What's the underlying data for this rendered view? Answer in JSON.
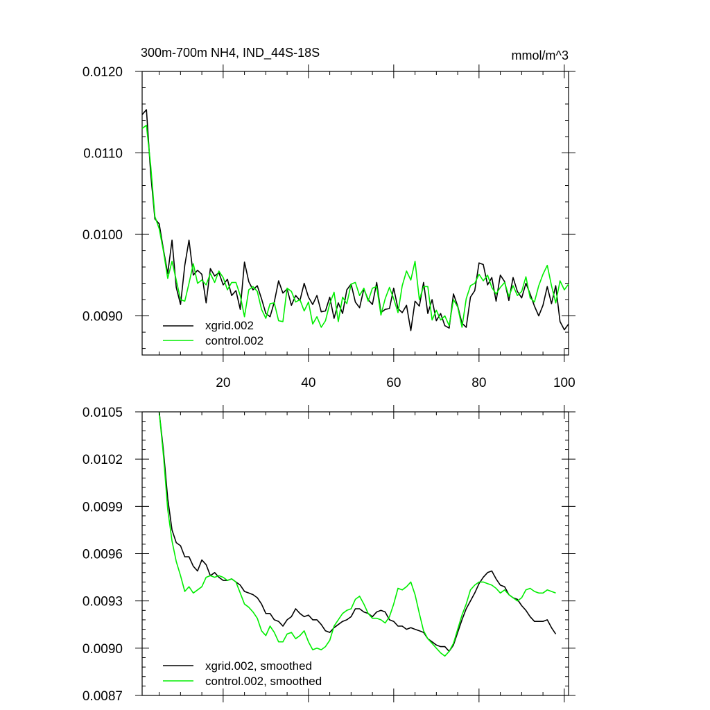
{
  "chart_data": [
    {
      "type": "line",
      "title": "300m-700m NH4, IND_44S-18S",
      "units": "mmol/m^3",
      "xlim": [
        1,
        101
      ],
      "ylim": [
        0.00852,
        0.012
      ],
      "xticks": [
        20,
        40,
        60,
        80,
        100
      ],
      "xtick_labels": [
        "20",
        "40",
        "60",
        "80",
        "100"
      ],
      "yticks": [
        0.009,
        0.01,
        0.011,
        0.012
      ],
      "ytick_labels": [
        "0.0090",
        "0.0100",
        "0.0110",
        "0.0120"
      ],
      "show_x_labels": true,
      "legend_position": "bottom-left",
      "series": [
        {
          "name": "xgrid.002",
          "color": "#000000",
          "x": [
            1,
            2,
            3,
            4,
            5,
            6,
            7,
            8,
            9,
            10,
            11,
            12,
            13,
            14,
            15,
            16,
            17,
            18,
            19,
            20,
            21,
            22,
            23,
            24,
            25,
            26,
            27,
            28,
            29,
            30,
            31,
            32,
            33,
            34,
            35,
            36,
            37,
            38,
            39,
            40,
            41,
            42,
            43,
            44,
            45,
            46,
            47,
            48,
            49,
            50,
            51,
            52,
            53,
            54,
            55,
            56,
            57,
            58,
            59,
            60,
            61,
            62,
            63,
            64,
            65,
            66,
            67,
            68,
            69,
            70,
            71,
            72,
            73,
            74,
            75,
            76,
            77,
            78,
            79,
            80,
            81,
            82,
            83,
            84,
            85,
            86,
            87,
            88,
            89,
            90,
            91,
            92,
            93,
            94,
            95,
            96,
            97,
            98,
            99,
            100,
            101
          ],
          "values": [
            0.01147,
            0.01153,
            0.01075,
            0.01019,
            0.01013,
            0.00981,
            0.00952,
            0.00993,
            0.00935,
            0.00914,
            0.00962,
            0.00993,
            0.0095,
            0.00956,
            0.00951,
            0.00916,
            0.00958,
            0.00949,
            0.00953,
            0.00938,
            0.00945,
            0.00925,
            0.00931,
            0.00908,
            0.00966,
            0.00942,
            0.00932,
            0.00937,
            0.00921,
            0.00903,
            0.00899,
            0.00917,
            0.00943,
            0.00928,
            0.00933,
            0.00913,
            0.00925,
            0.00919,
            0.0094,
            0.00923,
            0.00914,
            0.00925,
            0.00905,
            0.00906,
            0.00923,
            0.00897,
            0.00916,
            0.00903,
            0.00932,
            0.00939,
            0.00917,
            0.0091,
            0.00933,
            0.0092,
            0.00914,
            0.00941,
            0.00904,
            0.00908,
            0.00909,
            0.00934,
            0.00909,
            0.00904,
            0.00913,
            0.00882,
            0.00918,
            0.00912,
            0.00941,
            0.00903,
            0.0092,
            0.00894,
            0.00903,
            0.00888,
            0.00885,
            0.00927,
            0.00912,
            0.00891,
            0.00886,
            0.00923,
            0.00931,
            0.00965,
            0.00963,
            0.00938,
            0.00947,
            0.00918,
            0.0095,
            0.00942,
            0.00919,
            0.00947,
            0.0093,
            0.00922,
            0.0094,
            0.00927,
            0.00912,
            0.009,
            0.00913,
            0.00936,
            0.00915,
            0.00937,
            0.00893,
            0.00883,
            0.0089
          ]
        },
        {
          "name": "control.002",
          "color": "#00ee00",
          "x": [
            1,
            2,
            3,
            4,
            5,
            6,
            7,
            8,
            9,
            10,
            11,
            12,
            13,
            14,
            15,
            16,
            17,
            18,
            19,
            20,
            21,
            22,
            23,
            24,
            25,
            26,
            27,
            28,
            29,
            30,
            31,
            32,
            33,
            34,
            35,
            36,
            37,
            38,
            39,
            40,
            41,
            42,
            43,
            44,
            45,
            46,
            47,
            48,
            49,
            50,
            51,
            52,
            53,
            54,
            55,
            56,
            57,
            58,
            59,
            60,
            61,
            62,
            63,
            64,
            65,
            66,
            67,
            68,
            69,
            70,
            71,
            72,
            73,
            74,
            75,
            76,
            77,
            78,
            79,
            80,
            81,
            82,
            83,
            84,
            85,
            86,
            87,
            88,
            89,
            90,
            91,
            92,
            93,
            94,
            95,
            96,
            97,
            98,
            99,
            100,
            101
          ],
          "values": [
            0.0113,
            0.01134,
            0.01085,
            0.01022,
            0.01007,
            0.00979,
            0.00946,
            0.00967,
            0.00944,
            0.0092,
            0.00918,
            0.0094,
            0.00964,
            0.0094,
            0.00944,
            0.00938,
            0.00952,
            0.00941,
            0.00955,
            0.00947,
            0.00932,
            0.00941,
            0.00941,
            0.00925,
            0.00899,
            0.00932,
            0.00936,
            0.0093,
            0.00908,
            0.00897,
            0.00915,
            0.00916,
            0.00894,
            0.00893,
            0.00934,
            0.0093,
            0.00917,
            0.0092,
            0.00906,
            0.00917,
            0.0089,
            0.00899,
            0.00886,
            0.00894,
            0.00915,
            0.00929,
            0.00893,
            0.00923,
            0.00915,
            0.00939,
            0.00941,
            0.00925,
            0.00934,
            0.00918,
            0.00934,
            0.00936,
            0.00901,
            0.00921,
            0.00935,
            0.00921,
            0.00904,
            0.00937,
            0.00955,
            0.00944,
            0.00967,
            0.0092,
            0.00936,
            0.00936,
            0.00895,
            0.00907,
            0.00895,
            0.009,
            0.00888,
            0.0092,
            0.00911,
            0.00886,
            0.00921,
            0.00937,
            0.0094,
            0.00951,
            0.00943,
            0.0095,
            0.00935,
            0.00927,
            0.00935,
            0.00941,
            0.00924,
            0.00937,
            0.00925,
            0.0093,
            0.00948,
            0.00922,
            0.00917,
            0.00937,
            0.00951,
            0.00962,
            0.00937,
            0.00916,
            0.00943,
            0.00932,
            0.00939
          ]
        }
      ]
    },
    {
      "type": "line",
      "title": "",
      "xlim": [
        1,
        101
      ],
      "ylim": [
        0.0087,
        0.0105
      ],
      "xticks": [
        20,
        40,
        60,
        80,
        100
      ],
      "xtick_labels": [],
      "yticks": [
        0.0087,
        0.009,
        0.0093,
        0.0096,
        0.0099,
        0.0102,
        0.0105
      ],
      "ytick_labels": [
        "0.0087",
        "0.0090",
        "0.0093",
        "0.0096",
        "0.0099",
        "0.0102",
        "0.0105"
      ],
      "show_x_labels": false,
      "legend_position": "bottom-left",
      "series": [
        {
          "name": "xgrid.002, smoothed",
          "color": "#000000",
          "x": [
            5,
            6,
            7,
            8,
            9,
            10,
            11,
            12,
            13,
            14,
            15,
            16,
            17,
            18,
            19,
            20,
            21,
            22,
            23,
            24,
            25,
            26,
            27,
            28,
            29,
            30,
            31,
            32,
            33,
            34,
            35,
            36,
            37,
            38,
            39,
            40,
            41,
            42,
            43,
            44,
            45,
            46,
            47,
            48,
            49,
            50,
            51,
            52,
            53,
            54,
            55,
            56,
            57,
            58,
            59,
            60,
            61,
            62,
            63,
            64,
            65,
            66,
            67,
            68,
            69,
            70,
            71,
            72,
            73,
            74,
            75,
            76,
            77,
            78,
            79,
            80,
            81,
            82,
            83,
            84,
            85,
            86,
            87,
            88,
            89,
            90,
            91,
            92,
            93,
            94,
            95,
            96,
            97,
            98
          ],
          "values": [
            0.0105,
            0.01025,
            0.00995,
            0.00975,
            0.00967,
            0.00965,
            0.00958,
            0.00958,
            0.00952,
            0.00949,
            0.00956,
            0.00953,
            0.00946,
            0.00948,
            0.00945,
            0.00943,
            0.00943,
            0.00944,
            0.00942,
            0.0094,
            0.00936,
            0.00935,
            0.00934,
            0.00932,
            0.00928,
            0.00922,
            0.00922,
            0.00918,
            0.00917,
            0.00914,
            0.00918,
            0.0092,
            0.00925,
            0.00922,
            0.0092,
            0.00921,
            0.00918,
            0.00918,
            0.00915,
            0.00911,
            0.0091,
            0.00913,
            0.00915,
            0.00917,
            0.00918,
            0.0092,
            0.00925,
            0.00925,
            0.00923,
            0.00922,
            0.0092,
            0.00923,
            0.00924,
            0.00923,
            0.00918,
            0.00917,
            0.00914,
            0.00914,
            0.00912,
            0.00913,
            0.00912,
            0.00911,
            0.0091,
            0.00906,
            0.00904,
            0.00902,
            0.00901,
            0.00901,
            0.00898,
            0.00902,
            0.0091,
            0.00918,
            0.00925,
            0.0093,
            0.00935,
            0.00941,
            0.00945,
            0.00948,
            0.00949,
            0.00944,
            0.0094,
            0.00939,
            0.00934,
            0.00932,
            0.00931,
            0.00927,
            0.00924,
            0.0092,
            0.00917,
            0.00917,
            0.00917,
            0.00918,
            0.00913,
            0.00909
          ]
        },
        {
          "name": "control.002, smoothed",
          "color": "#00ee00",
          "x": [
            5,
            6,
            7,
            8,
            9,
            10,
            11,
            12,
            13,
            14,
            15,
            16,
            17,
            18,
            19,
            20,
            21,
            22,
            23,
            24,
            25,
            26,
            27,
            28,
            29,
            30,
            31,
            32,
            33,
            34,
            35,
            36,
            37,
            38,
            39,
            40,
            41,
            42,
            43,
            44,
            45,
            46,
            47,
            48,
            49,
            50,
            51,
            52,
            53,
            54,
            55,
            56,
            57,
            58,
            59,
            60,
            61,
            62,
            63,
            64,
            65,
            66,
            67,
            68,
            69,
            70,
            71,
            72,
            73,
            74,
            75,
            76,
            77,
            78,
            79,
            80,
            81,
            82,
            83,
            84,
            85,
            86,
            87,
            88,
            89,
            90,
            91,
            92,
            93,
            94,
            95,
            96,
            97,
            98
          ],
          "values": [
            0.0105,
            0.01022,
            0.00988,
            0.00968,
            0.00955,
            0.00946,
            0.00936,
            0.00939,
            0.00935,
            0.00937,
            0.00939,
            0.00945,
            0.00946,
            0.00945,
            0.00946,
            0.00945,
            0.00943,
            0.00944,
            0.00942,
            0.00935,
            0.00928,
            0.00926,
            0.00923,
            0.00919,
            0.00911,
            0.00908,
            0.00914,
            0.0091,
            0.00904,
            0.00904,
            0.00909,
            0.0091,
            0.00906,
            0.00908,
            0.00911,
            0.00904,
            0.00899,
            0.009,
            0.00899,
            0.00901,
            0.00905,
            0.00914,
            0.00918,
            0.00922,
            0.00924,
            0.00925,
            0.00931,
            0.00933,
            0.00928,
            0.00922,
            0.00919,
            0.00919,
            0.00918,
            0.00916,
            0.0092,
            0.00928,
            0.00938,
            0.00937,
            0.00939,
            0.00942,
            0.00934,
            0.00922,
            0.00911,
            0.00906,
            0.00903,
            0.009,
            0.00897,
            0.00895,
            0.00898,
            0.00903,
            0.00912,
            0.00921,
            0.00928,
            0.00937,
            0.0094,
            0.00942,
            0.00942,
            0.00941,
            0.0094,
            0.00938,
            0.00935,
            0.00937,
            0.00934,
            0.00932,
            0.0093,
            0.00932,
            0.00937,
            0.00938,
            0.00936,
            0.00935,
            0.00935,
            0.00937,
            0.00936,
            0.00935
          ]
        }
      ]
    }
  ]
}
